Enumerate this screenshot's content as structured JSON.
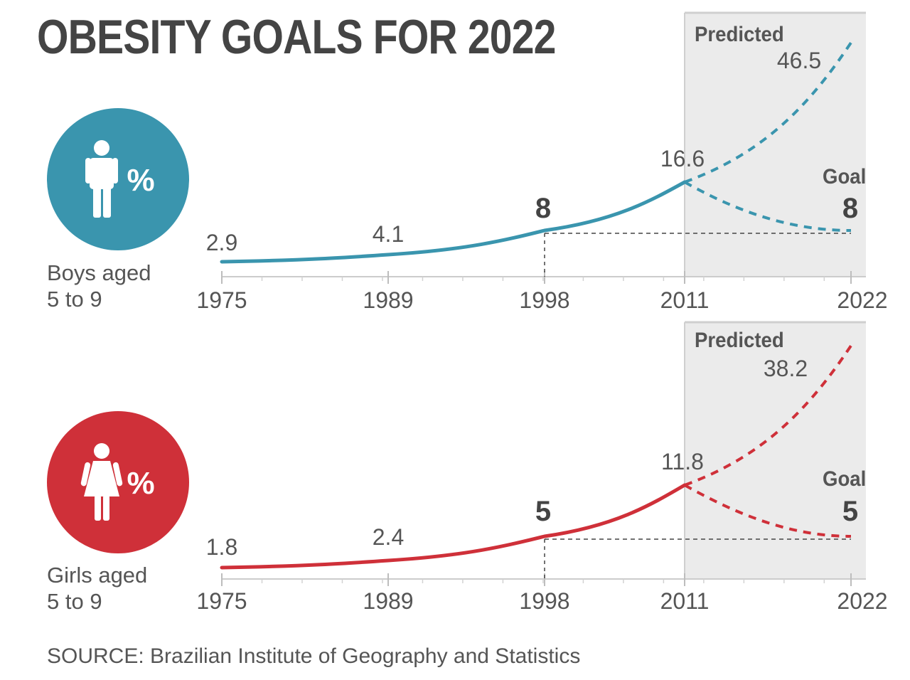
{
  "title": "OBESITY GOALS FOR 2022",
  "source": "SOURCE: Brazilian Institute of Geography and Statistics",
  "colors": {
    "boys": "#3a95ae",
    "girls": "#cf3039",
    "shade": "#ebebeb",
    "text": "#444444"
  },
  "chart_data": [
    {
      "type": "line",
      "group": "boys",
      "icon": "boy-icon",
      "percent_symbol": "%",
      "label_lines": [
        "Boys aged",
        "5 to 9"
      ],
      "x_ticks": [
        "1975",
        "1989",
        "1998",
        "2011",
        "2022"
      ],
      "unit": "%",
      "series": [
        {
          "type": "observed",
          "x": [
            "1975",
            "1989",
            "1998",
            "2011"
          ],
          "values": [
            2.9,
            4.1,
            8,
            16.6
          ],
          "value_labels": [
            "2.9",
            "4.1",
            "8",
            "16.6"
          ]
        },
        {
          "name": "Predicted",
          "x": [
            "2011",
            "2022"
          ],
          "values": [
            16.6,
            46.5
          ],
          "value_label": "46.5"
        },
        {
          "name": "Goal",
          "x": [
            "2011",
            "2022"
          ],
          "values": [
            16.6,
            8
          ],
          "value_label": "8"
        }
      ]
    },
    {
      "type": "line",
      "group": "girls",
      "icon": "girl-icon",
      "percent_symbol": "%",
      "label_lines": [
        "Girls aged",
        "5 to 9"
      ],
      "x_ticks": [
        "1975",
        "1989",
        "1998",
        "2011",
        "2022"
      ],
      "unit": "%",
      "series": [
        {
          "type": "observed",
          "x": [
            "1975",
            "1989",
            "1998",
            "2011"
          ],
          "values": [
            1.8,
            2.4,
            5,
            11.8
          ],
          "value_labels": [
            "1.8",
            "2.4",
            "5",
            "11.8"
          ]
        },
        {
          "name": "Predicted",
          "x": [
            "2011",
            "2022"
          ],
          "values": [
            11.8,
            38.2
          ],
          "value_label": "38.2"
        },
        {
          "name": "Goal",
          "x": [
            "2011",
            "2022"
          ],
          "values": [
            11.8,
            5
          ],
          "value_label": "5"
        }
      ]
    }
  ]
}
